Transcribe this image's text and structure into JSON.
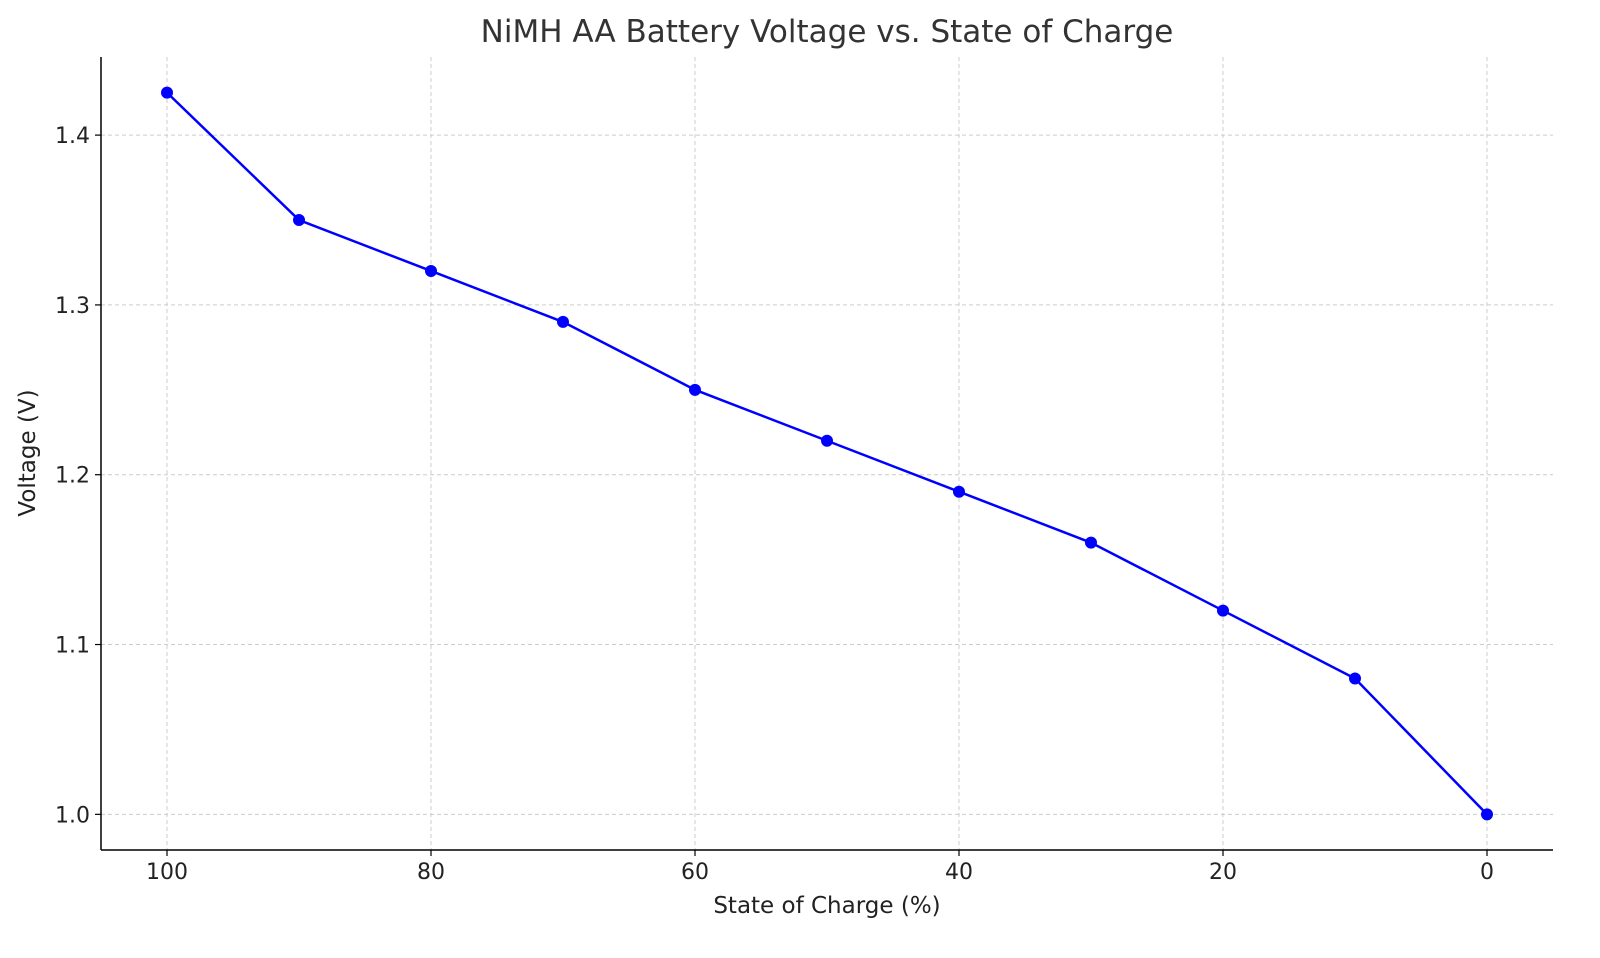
{
  "chart_data": {
    "type": "line",
    "title": "NiMH AA Battery Voltage vs. State of Charge",
    "xlabel": "State of Charge (%)",
    "ylabel": "Voltage (V)",
    "x": [
      100,
      90,
      80,
      70,
      60,
      50,
      40,
      30,
      20,
      10,
      0
    ],
    "series": [
      {
        "values": [
          1.425,
          1.35,
          1.32,
          1.29,
          1.25,
          1.22,
          1.19,
          1.16,
          1.12,
          1.08,
          1.0
        ],
        "color": "#0000ff",
        "marker": "circle"
      }
    ],
    "xlim": [
      105,
      -5
    ],
    "ylim": [
      0.979,
      1.446
    ],
    "x_inverted": true,
    "xticks": [
      100,
      80,
      60,
      40,
      20,
      0
    ],
    "xtick_labels": [
      "100",
      "80",
      "60",
      "40",
      "20",
      "0"
    ],
    "yticks": [
      1.0,
      1.1,
      1.2,
      1.3,
      1.4
    ],
    "ytick_labels": [
      "1.0",
      "1.1",
      "1.2",
      "1.3",
      "1.4"
    ],
    "grid": true,
    "grid_style": "dashed",
    "grid_color": "#cccccc"
  }
}
